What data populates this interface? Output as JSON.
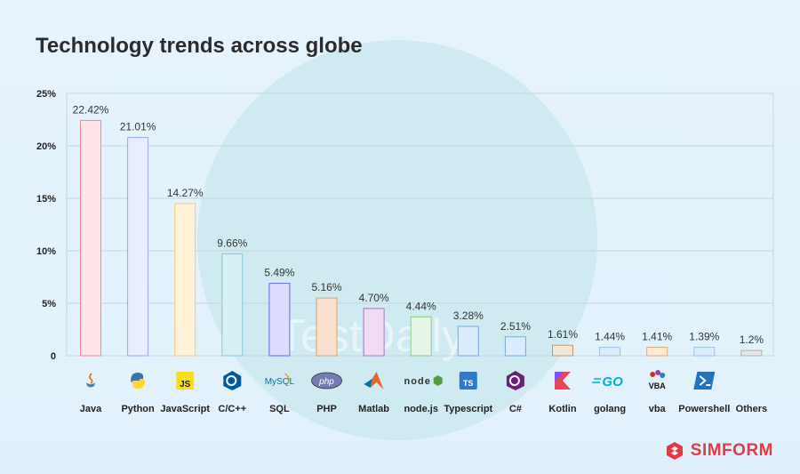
{
  "title": "Technology trends across globe",
  "brand": {
    "name": "SIMFORM",
    "color": "#e63946"
  },
  "watermark": {
    "text": "TestDaily"
  },
  "chart_data": {
    "type": "bar",
    "title": "Technology trends across globe",
    "xlabel": "",
    "ylabel": "",
    "ylim": [
      0,
      25
    ],
    "yticks": [
      "0",
      "5%",
      "10%",
      "15%",
      "20%",
      "25%"
    ],
    "ytick_values": [
      0,
      5,
      10,
      15,
      20,
      25
    ],
    "grid": true,
    "categories": [
      "Java",
      "Python",
      "JavaScript",
      "C/C++",
      "SQL",
      "PHP",
      "Matlab",
      "node.js",
      "Typescript",
      "C#",
      "Kotlin",
      "golang",
      "vba",
      "Powershell",
      "Others"
    ],
    "values": [
      22.42,
      21.01,
      14.27,
      9.66,
      5.49,
      5.16,
      4.7,
      4.44,
      3.28,
      2.51,
      1.61,
      1.44,
      1.41,
      1.39,
      1.2
    ],
    "bar_heights": [
      22.42,
      20.8,
      14.5,
      9.7,
      6.9,
      5.5,
      4.5,
      3.7,
      2.8,
      1.8,
      1.0,
      0.8,
      0.8,
      0.8,
      0.5
    ],
    "value_labels": [
      "22.42%",
      "21.01%",
      "14.27%",
      "9.66%",
      "5.49%",
      "5.16%",
      "4.70%",
      "4.44%",
      "3.28%",
      "2.51%",
      "1.61%",
      "1.44%",
      "1.41%",
      "1.39%",
      "1.2%"
    ],
    "bar_fills": [
      "#ffe5e8",
      "#e8edff",
      "#fff1d6",
      "#d6f0f4",
      "#dcdcff",
      "#fae0cc",
      "#f0dcf5",
      "#e6f5e6",
      "#dcecff",
      "#dcecff",
      "#f2e6d6",
      "#dcecff",
      "#ffe8d6",
      "#dcecff",
      "#e6e6e6"
    ],
    "bar_strokes": [
      "#f08a9a",
      "#9aa8f0",
      "#f0c880",
      "#7ccbd6",
      "#6a6ae6",
      "#d9a070",
      "#b070c8",
      "#8ac88a",
      "#7aa8e0",
      "#7aa8e0",
      "#c09870",
      "#9ac0e8",
      "#e0a878",
      "#9ac0e8",
      "#b0b0b0"
    ],
    "icons": [
      "java-icon",
      "python-icon",
      "javascript-icon",
      "cpp-icon",
      "mysql-icon",
      "php-icon",
      "matlab-icon",
      "nodejs-icon",
      "typescript-icon",
      "csharp-icon",
      "kotlin-icon",
      "golang-icon",
      "vba-icon",
      "powershell-icon",
      "others-icon"
    ]
  }
}
